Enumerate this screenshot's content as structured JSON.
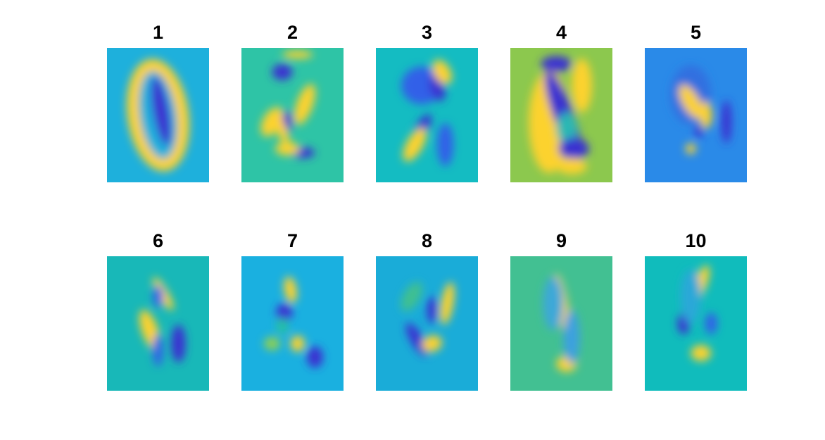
{
  "panels": [
    {
      "title": "1"
    },
    {
      "title": "2"
    },
    {
      "title": "3"
    },
    {
      "title": "4"
    },
    {
      "title": "5"
    },
    {
      "title": "6"
    },
    {
      "title": "7"
    },
    {
      "title": "8"
    },
    {
      "title": "9"
    },
    {
      "title": "10"
    }
  ]
}
